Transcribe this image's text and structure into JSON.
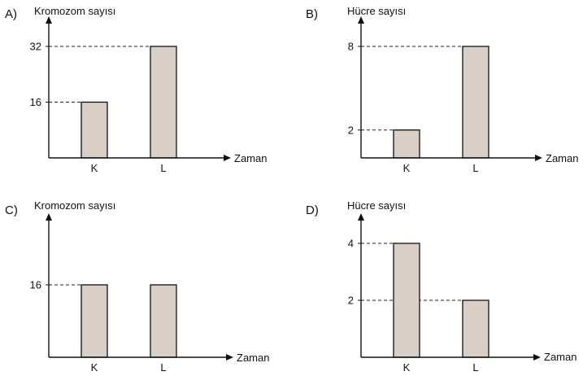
{
  "colors": {
    "bar_fill": "#d9cfc7",
    "ink": "#111111"
  },
  "chart_data": [
    {
      "type": "bar",
      "option": "A)",
      "ylabel": "Kromozom sayısı",
      "xlabel": "Zaman",
      "categories": [
        "K",
        "L"
      ],
      "values": [
        16,
        32
      ],
      "yticks": [
        16,
        32
      ],
      "ylim": [
        0,
        40
      ]
    },
    {
      "type": "bar",
      "option": "B)",
      "ylabel": "Hücre sayısı",
      "xlabel": "Zaman",
      "categories": [
        "K",
        "L"
      ],
      "values": [
        2,
        8
      ],
      "yticks": [
        2,
        8
      ],
      "ylim": [
        0,
        10
      ]
    },
    {
      "type": "bar",
      "option": "C)",
      "ylabel": "Kromozom sayısı",
      "xlabel": "Zaman",
      "categories": [
        "K",
        "L"
      ],
      "values": [
        16,
        16
      ],
      "yticks": [
        16
      ],
      "ylim": [
        0,
        32
      ]
    },
    {
      "type": "bar",
      "option": "D)",
      "ylabel": "Hücre sayısı",
      "xlabel": "Zaman",
      "categories": [
        "K",
        "L"
      ],
      "values": [
        4,
        2
      ],
      "yticks": [
        4,
        2
      ],
      "ylim": [
        0,
        5
      ]
    }
  ]
}
